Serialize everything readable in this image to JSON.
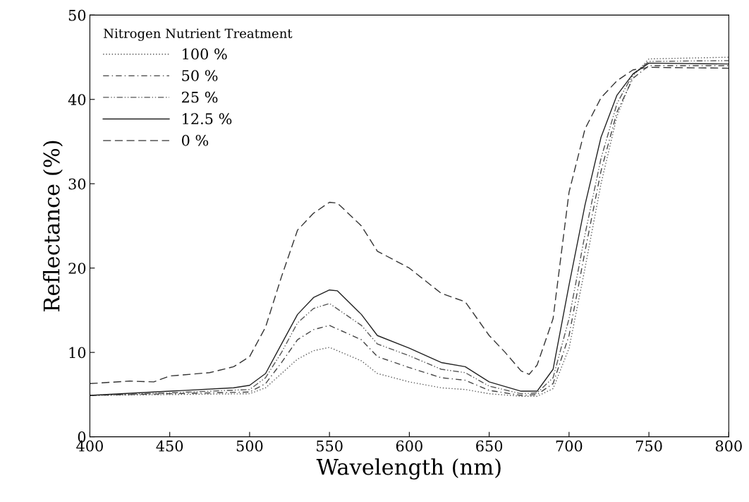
{
  "chart_data": {
    "type": "line",
    "xlabel": "Wavelength (nm)",
    "ylabel": "Reflectance (%)",
    "legend_title": "Nitrogen Nutrient Treatment",
    "legend": "top left",
    "grid": false,
    "xlim": [
      400,
      800
    ],
    "xticks": [
      400,
      450,
      500,
      550,
      600,
      650,
      700,
      750,
      800
    ],
    "ylim": [
      0,
      50
    ],
    "yticks": [
      0,
      10,
      20,
      30,
      40,
      50
    ],
    "series": [
      {
        "name": "100 %",
        "color": "#555555",
        "line_style": "dotted",
        "x": [
          400,
          450,
          500,
          510,
          520,
          530,
          540,
          550,
          570,
          580,
          600,
          620,
          635,
          650,
          670,
          680,
          690,
          700,
          710,
          720,
          730,
          740,
          750,
          800
        ],
        "values": [
          4.9,
          5.0,
          5.1,
          5.8,
          7.5,
          9.2,
          10.2,
          10.6,
          9.0,
          7.5,
          6.5,
          5.8,
          5.6,
          5.1,
          4.8,
          4.8,
          5.7,
          10.5,
          20,
          30,
          38,
          42.8,
          44.8,
          45
        ]
      },
      {
        "name": "50 %",
        "color": "#444444",
        "line_style": "dashdot",
        "x": [
          400,
          450,
          500,
          510,
          520,
          530,
          540,
          550,
          570,
          580,
          600,
          620,
          635,
          650,
          670,
          680,
          690,
          700,
          710,
          720,
          730,
          740,
          750,
          800
        ],
        "values": [
          4.9,
          5.1,
          5.3,
          6.3,
          8.8,
          11.5,
          12.7,
          13.2,
          11.5,
          9.5,
          8.2,
          7.0,
          6.7,
          5.5,
          4.9,
          5.0,
          6.3,
          12,
          22,
          31.5,
          38.5,
          42.5,
          44,
          44
        ]
      },
      {
        "name": "25 %",
        "color": "#555555",
        "line_style": "dashdotdot",
        "x": [
          400,
          450,
          500,
          510,
          520,
          530,
          540,
          550,
          570,
          580,
          600,
          620,
          635,
          650,
          670,
          680,
          690,
          700,
          710,
          720,
          730,
          740,
          750,
          800
        ],
        "values": [
          4.9,
          5.2,
          5.6,
          7.0,
          10,
          13.5,
          15.2,
          15.8,
          13.2,
          11,
          9.6,
          8.0,
          7.6,
          6.0,
          5.1,
          5.2,
          7.0,
          14,
          24,
          33,
          39.5,
          43,
          44.5,
          44.6
        ]
      },
      {
        "name": "12.5 %",
        "color": "#222222",
        "line_style": "solid",
        "x": [
          400,
          450,
          490,
          500,
          510,
          520,
          530,
          540,
          550,
          555,
          570,
          580,
          600,
          620,
          635,
          650,
          670,
          680,
          690,
          700,
          710,
          720,
          730,
          740,
          750,
          800
        ],
        "values": [
          4.9,
          5.4,
          5.8,
          6.1,
          7.5,
          11,
          14.5,
          16.5,
          17.4,
          17.3,
          14.5,
          12,
          10.5,
          8.8,
          8.3,
          6.5,
          5.4,
          5.4,
          8,
          18,
          27.5,
          35.5,
          40.5,
          43,
          44.3,
          44.2
        ]
      },
      {
        "name": "0 %",
        "color": "#333333",
        "line_style": "dashed",
        "x": [
          400,
          425,
          440,
          450,
          475,
          490,
          500,
          510,
          520,
          530,
          540,
          550,
          555,
          570,
          580,
          600,
          620,
          635,
          650,
          660,
          670,
          675,
          680,
          690,
          700,
          710,
          720,
          730,
          740,
          750,
          800
        ],
        "values": [
          6.3,
          6.6,
          6.5,
          7.2,
          7.6,
          8.3,
          9.5,
          13,
          19,
          24.5,
          26.5,
          27.8,
          27.7,
          25,
          22,
          20,
          17,
          16,
          12,
          10,
          7.8,
          7.4,
          8.5,
          14,
          29,
          36.5,
          40.2,
          42.2,
          43.5,
          43.8,
          43.7
        ]
      }
    ]
  }
}
